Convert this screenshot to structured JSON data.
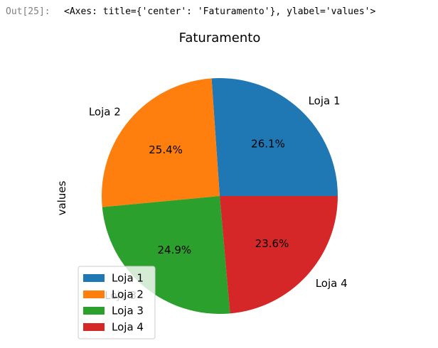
{
  "cell": {
    "prompt": "Out[25]:",
    "output_text": "<Axes: title={'center': 'Faturamento'}, ylabel='values'>"
  },
  "chart_data": {
    "type": "pie",
    "title": "Faturamento",
    "ylabel": "values",
    "categories": [
      "Loja 1",
      "Loja 2",
      "Loja 3",
      "Loja 4"
    ],
    "values": [
      26.1,
      25.4,
      24.9,
      23.6
    ],
    "autopct_labels": [
      "26.1%",
      "25.4%",
      "24.9%",
      "23.6%"
    ],
    "colors": [
      "#1f77b4",
      "#ff7f0e",
      "#2ca02c",
      "#d62728"
    ],
    "start_angle_deg": 0,
    "direction": "counterclockwise",
    "legend": {
      "entries": [
        "Loja 1",
        "Loja 2",
        "Loja 3",
        "Loja 4"
      ],
      "placement": "lower-left"
    }
  }
}
